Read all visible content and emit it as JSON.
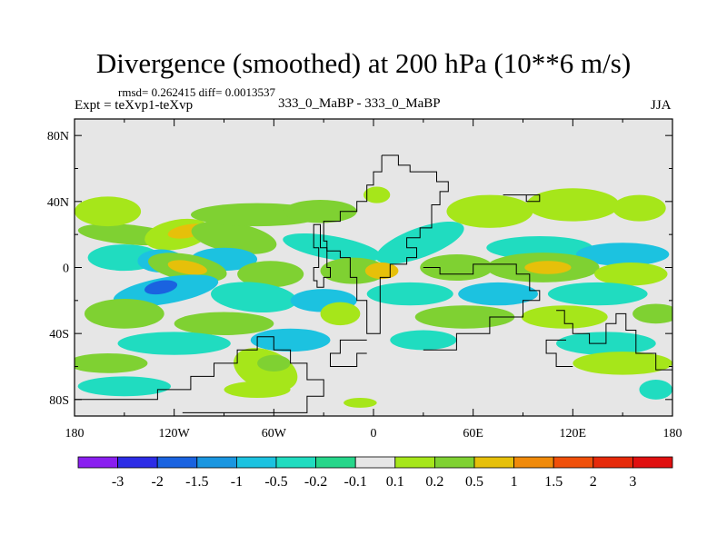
{
  "header": {
    "title": "Divergence (smoothed) at 200 hPa (10**6 m/s)",
    "stats": "rmsd= 0.262415 diff= 0.0013537",
    "expt": "Expt = teXvp1-teXvp",
    "experiments": "333_0_MaBP - 333_0_MaBP",
    "season": "JJA"
  },
  "chart_data": {
    "type": "heatmap",
    "title": "Divergence (smoothed) at 200 hPa (10**6 m/s)",
    "xlabel": "",
    "ylabel": "",
    "xlim": [
      -180,
      180
    ],
    "ylim": [
      -90,
      90
    ],
    "x_ticks": [
      -180,
      -120,
      -60,
      0,
      60,
      120,
      180
    ],
    "x_tick_labels": [
      "180",
      "120W",
      "60W",
      "0",
      "60E",
      "120E",
      "180"
    ],
    "y_ticks": [
      80,
      40,
      0,
      -40,
      -80
    ],
    "y_tick_labels": [
      "80N",
      "40N",
      "0",
      "40S",
      "80S"
    ],
    "colorbar": {
      "labels": [
        "-3",
        "-2",
        "-1.5",
        "-1",
        "-0.5",
        "-0.2",
        "-0.1",
        "0.1",
        "0.2",
        "0.5",
        "1",
        "1.5",
        "2",
        "3"
      ],
      "colors": [
        "#8a1ff0",
        "#2d2de6",
        "#1a63e0",
        "#1a96e0",
        "#1cc2e0",
        "#20dcc0",
        "#26d68a",
        "#e6e6e6",
        "#a6e61a",
        "#7fd132",
        "#e6c00a",
        "#f08a0a",
        "#f0500a",
        "#e62a0a",
        "#e01010"
      ]
    },
    "blobs": [
      {
        "lon": -148,
        "lat": 20,
        "rx": 30,
        "ry": 6,
        "rot": -5,
        "level": 9
      },
      {
        "lon": -118,
        "lat": 20,
        "rx": 20,
        "ry": 9,
        "rot": 10,
        "level": 8
      },
      {
        "lon": -112,
        "lat": 22,
        "rx": 12,
        "ry": 4,
        "rot": 10,
        "level": 10
      },
      {
        "lon": -84,
        "lat": 18,
        "rx": 26,
        "ry": 9,
        "rot": -10,
        "level": 9
      },
      {
        "lon": -70,
        "lat": 32,
        "rx": 40,
        "ry": 7,
        "rot": 0,
        "level": 9
      },
      {
        "lon": -160,
        "lat": 34,
        "rx": 20,
        "ry": 9,
        "rot": 0,
        "level": 8
      },
      {
        "lon": -32,
        "lat": 34,
        "rx": 22,
        "ry": 7,
        "rot": 0,
        "level": 9
      },
      {
        "lon": 70,
        "lat": 34,
        "rx": 26,
        "ry": 10,
        "rot": 0,
        "level": 8
      },
      {
        "lon": 120,
        "lat": 38,
        "rx": 28,
        "ry": 10,
        "rot": 0,
        "level": 8
      },
      {
        "lon": 160,
        "lat": 36,
        "rx": 16,
        "ry": 8,
        "rot": 0,
        "level": 8
      },
      {
        "lon": 2,
        "lat": 44,
        "rx": 8,
        "ry": 5,
        "rot": 0,
        "level": 8
      },
      {
        "lon": -150,
        "lat": 6,
        "rx": 22,
        "ry": 8,
        "rot": 0,
        "level": 5
      },
      {
        "lon": -128,
        "lat": 4,
        "rx": 14,
        "ry": 7,
        "rot": 0,
        "level": 4
      },
      {
        "lon": -90,
        "lat": 5,
        "rx": 20,
        "ry": 7,
        "rot": 0,
        "level": 4
      },
      {
        "lon": -25,
        "lat": 12,
        "rx": 30,
        "ry": 7,
        "rot": -10,
        "level": 5
      },
      {
        "lon": 28,
        "lat": 15,
        "rx": 28,
        "ry": 9,
        "rot": 20,
        "level": 5
      },
      {
        "lon": 100,
        "lat": 12,
        "rx": 32,
        "ry": 7,
        "rot": 0,
        "level": 5
      },
      {
        "lon": 150,
        "lat": 8,
        "rx": 28,
        "ry": 7,
        "rot": 0,
        "level": 4
      },
      {
        "lon": -112,
        "lat": 0,
        "rx": 24,
        "ry": 8,
        "rot": -10,
        "level": 9
      },
      {
        "lon": -112,
        "lat": 0,
        "rx": 12,
        "ry": 4,
        "rot": -10,
        "level": 10
      },
      {
        "lon": -62,
        "lat": -4,
        "rx": 20,
        "ry": 8,
        "rot": 0,
        "level": 9
      },
      {
        "lon": -12,
        "lat": -2,
        "rx": 20,
        "ry": 8,
        "rot": 0,
        "level": 9
      },
      {
        "lon": 5,
        "lat": -2,
        "rx": 10,
        "ry": 5,
        "rot": 0,
        "level": 10
      },
      {
        "lon": 50,
        "lat": 0,
        "rx": 22,
        "ry": 8,
        "rot": 0,
        "level": 9
      },
      {
        "lon": 102,
        "lat": 0,
        "rx": 34,
        "ry": 9,
        "rot": 0,
        "level": 9
      },
      {
        "lon": 105,
        "lat": 0,
        "rx": 14,
        "ry": 4,
        "rot": 0,
        "level": 10
      },
      {
        "lon": 155,
        "lat": -4,
        "rx": 22,
        "ry": 7,
        "rot": 0,
        "level": 8
      },
      {
        "lon": -125,
        "lat": -14,
        "rx": 32,
        "ry": 8,
        "rot": 10,
        "level": 4
      },
      {
        "lon": -128,
        "lat": -12,
        "rx": 10,
        "ry": 4,
        "rot": 10,
        "level": 2
      },
      {
        "lon": -72,
        "lat": -18,
        "rx": 26,
        "ry": 9,
        "rot": -5,
        "level": 5
      },
      {
        "lon": -30,
        "lat": -20,
        "rx": 20,
        "ry": 7,
        "rot": 0,
        "level": 4
      },
      {
        "lon": 22,
        "lat": -16,
        "rx": 26,
        "ry": 7,
        "rot": 0,
        "level": 5
      },
      {
        "lon": 75,
        "lat": -16,
        "rx": 24,
        "ry": 7,
        "rot": 0,
        "level": 4
      },
      {
        "lon": 135,
        "lat": -16,
        "rx": 30,
        "ry": 7,
        "rot": 0,
        "level": 5
      },
      {
        "lon": -150,
        "lat": -28,
        "rx": 24,
        "ry": 9,
        "rot": 0,
        "level": 9
      },
      {
        "lon": -90,
        "lat": -34,
        "rx": 30,
        "ry": 7,
        "rot": 0,
        "level": 9
      },
      {
        "lon": -20,
        "lat": -28,
        "rx": 12,
        "ry": 7,
        "rot": 0,
        "level": 8
      },
      {
        "lon": 55,
        "lat": -30,
        "rx": 30,
        "ry": 7,
        "rot": 0,
        "level": 9
      },
      {
        "lon": 115,
        "lat": -30,
        "rx": 26,
        "ry": 7,
        "rot": 0,
        "level": 8
      },
      {
        "lon": 170,
        "lat": -28,
        "rx": 14,
        "ry": 6,
        "rot": 0,
        "level": 9
      },
      {
        "lon": -120,
        "lat": -46,
        "rx": 34,
        "ry": 7,
        "rot": 0,
        "level": 5
      },
      {
        "lon": -50,
        "lat": -44,
        "rx": 24,
        "ry": 7,
        "rot": 0,
        "level": 4
      },
      {
        "lon": 30,
        "lat": -44,
        "rx": 20,
        "ry": 6,
        "rot": 0,
        "level": 5
      },
      {
        "lon": 140,
        "lat": -46,
        "rx": 30,
        "ry": 7,
        "rot": 0,
        "level": 5
      },
      {
        "lon": -160,
        "lat": -58,
        "rx": 24,
        "ry": 6,
        "rot": 0,
        "level": 9
      },
      {
        "lon": -65,
        "lat": -62,
        "rx": 20,
        "ry": 12,
        "rot": -20,
        "level": 8
      },
      {
        "lon": -60,
        "lat": -58,
        "rx": 10,
        "ry": 5,
        "rot": 0,
        "level": 9
      },
      {
        "lon": 150,
        "lat": -58,
        "rx": 30,
        "ry": 7,
        "rot": 0,
        "level": 8
      },
      {
        "lon": -150,
        "lat": -72,
        "rx": 28,
        "ry": 6,
        "rot": 0,
        "level": 5
      },
      {
        "lon": -70,
        "lat": -74,
        "rx": 20,
        "ry": 5,
        "rot": 0,
        "level": 8
      },
      {
        "lon": -8,
        "lat": -82,
        "rx": 10,
        "ry": 3,
        "rot": 0,
        "level": 8
      },
      {
        "lon": 170,
        "lat": -74,
        "rx": 10,
        "ry": 6,
        "rot": 0,
        "level": 5
      }
    ],
    "outlines": [
      [
        [
          5,
          68
        ],
        [
          15,
          68
        ],
        [
          15,
          62
        ],
        [
          22,
          62
        ],
        [
          22,
          58
        ],
        [
          38,
          58
        ],
        [
          38,
          52
        ],
        [
          45,
          52
        ],
        [
          45,
          46
        ],
        [
          40,
          46
        ],
        [
          40,
          38
        ],
        [
          35,
          38
        ],
        [
          35,
          24
        ],
        [
          28,
          24
        ],
        [
          28,
          18
        ],
        [
          20,
          18
        ],
        [
          20,
          12
        ],
        [
          26,
          12
        ],
        [
          26,
          6
        ],
        [
          20,
          6
        ],
        [
          20,
          2
        ],
        [
          10,
          2
        ],
        [
          10,
          -6
        ],
        [
          4,
          -6
        ],
        [
          4,
          -40
        ],
        [
          -4,
          -40
        ],
        [
          -4,
          -20
        ],
        [
          -10,
          -20
        ],
        [
          -10,
          -6
        ],
        [
          -14,
          -6
        ],
        [
          -14,
          6
        ],
        [
          -20,
          6
        ],
        [
          -20,
          10
        ],
        [
          -28,
          10
        ],
        [
          -28,
          16
        ],
        [
          -30,
          16
        ],
        [
          -30,
          28
        ],
        [
          -20,
          28
        ],
        [
          -20,
          34
        ],
        [
          -10,
          34
        ],
        [
          -10,
          40
        ],
        [
          -4,
          40
        ],
        [
          -4,
          50
        ],
        [
          0,
          50
        ],
        [
          0,
          58
        ],
        [
          5,
          58
        ],
        [
          5,
          68
        ]
      ],
      [
        [
          -35,
          26
        ],
        [
          -32,
          26
        ],
        [
          -32,
          12
        ],
        [
          -28,
          12
        ],
        [
          -28,
          0
        ],
        [
          -26,
          0
        ],
        [
          -26,
          -6
        ],
        [
          -30,
          -6
        ],
        [
          -30,
          -12
        ],
        [
          -34,
          -12
        ],
        [
          -34,
          -8
        ],
        [
          -36,
          -8
        ],
        [
          -36,
          0
        ],
        [
          -33,
          0
        ],
        [
          -33,
          12
        ],
        [
          -36,
          12
        ],
        [
          -36,
          26
        ],
        [
          -35,
          26
        ]
      ],
      [
        [
          -115,
          -88
        ],
        [
          -40,
          -88
        ],
        [
          -40,
          -78
        ],
        [
          -30,
          -78
        ],
        [
          -30,
          -68
        ],
        [
          -40,
          -68
        ],
        [
          -40,
          -58
        ],
        [
          -50,
          -58
        ],
        [
          -50,
          -50
        ],
        [
          -60,
          -50
        ],
        [
          -60,
          -42
        ],
        [
          -70,
          -42
        ],
        [
          -70,
          -50
        ],
        [
          -82,
          -50
        ],
        [
          -82,
          -58
        ],
        [
          -96,
          -58
        ],
        [
          -96,
          -66
        ],
        [
          -110,
          -66
        ],
        [
          -110,
          -74
        ],
        [
          -130,
          -74
        ],
        [
          -130,
          -80
        ],
        [
          -180,
          -80
        ]
      ],
      [
        [
          30,
          -50
        ],
        [
          50,
          -50
        ],
        [
          50,
          -40
        ],
        [
          70,
          -40
        ],
        [
          70,
          -30
        ],
        [
          90,
          -30
        ],
        [
          90,
          -20
        ],
        [
          100,
          -20
        ],
        [
          100,
          -14
        ],
        [
          94,
          -14
        ],
        [
          94,
          -4
        ],
        [
          86,
          -4
        ],
        [
          86,
          2
        ],
        [
          60,
          2
        ],
        [
          60,
          -4
        ],
        [
          40,
          -4
        ],
        [
          40,
          0
        ],
        [
          30,
          0
        ]
      ],
      [
        [
          110,
          -26
        ],
        [
          115,
          -26
        ],
        [
          115,
          -34
        ],
        [
          120,
          -34
        ],
        [
          120,
          -40
        ],
        [
          130,
          -40
        ],
        [
          130,
          -46
        ],
        [
          140,
          -46
        ],
        [
          140,
          -34
        ],
        [
          146,
          -34
        ],
        [
          146,
          -28
        ],
        [
          152,
          -28
        ],
        [
          152,
          -38
        ],
        [
          158,
          -38
        ],
        [
          158,
          -52
        ],
        [
          170,
          -52
        ],
        [
          170,
          -62
        ],
        [
          180,
          -62
        ]
      ],
      [
        [
          120,
          -60
        ],
        [
          110,
          -60
        ],
        [
          110,
          -52
        ],
        [
          104,
          -52
        ],
        [
          104,
          -44
        ],
        [
          116,
          -44
        ]
      ],
      [
        [
          78,
          44
        ],
        [
          92,
          44
        ],
        [
          92,
          40
        ],
        [
          100,
          40
        ],
        [
          100,
          44
        ],
        [
          78,
          44
        ]
      ],
      [
        [
          -4,
          -44
        ],
        [
          -20,
          -44
        ],
        [
          -20,
          -52
        ],
        [
          -26,
          -52
        ],
        [
          -26,
          -60
        ],
        [
          -10,
          -60
        ],
        [
          -10,
          -52
        ],
        [
          -4,
          -52
        ]
      ]
    ]
  }
}
